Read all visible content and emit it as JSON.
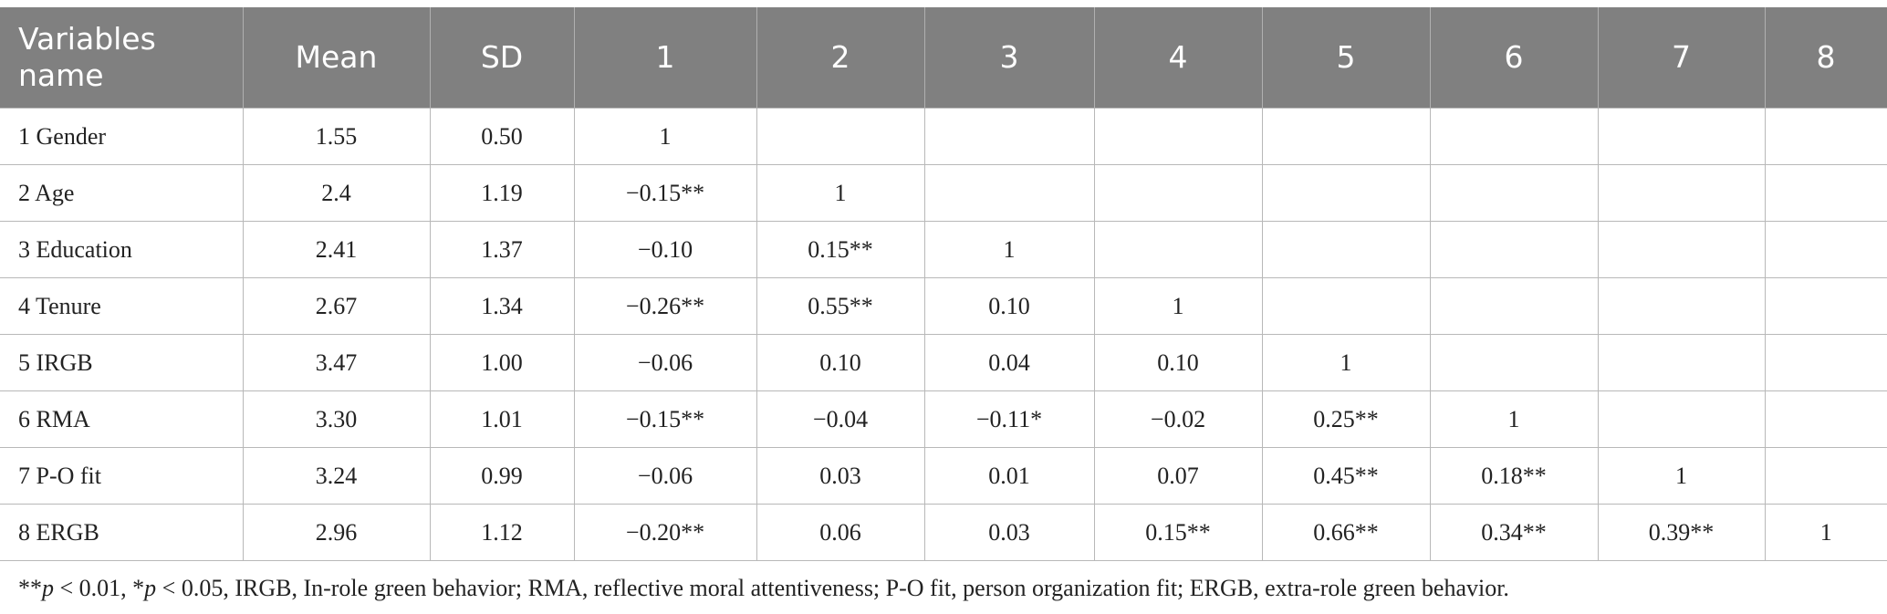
{
  "table": {
    "headers": [
      "Variables name",
      "Mean",
      "SD",
      "1",
      "2",
      "3",
      "4",
      "5",
      "6",
      "7",
      "8"
    ],
    "rows": [
      [
        "1 Gender",
        "1.55",
        "0.50",
        "1",
        "",
        "",
        "",
        "",
        "",
        "",
        ""
      ],
      [
        "2 Age",
        "2.4",
        "1.19",
        "−0.15**",
        "1",
        "",
        "",
        "",
        "",
        "",
        ""
      ],
      [
        "3 Education",
        "2.41",
        "1.37",
        "−0.10",
        "0.15**",
        "1",
        "",
        "",
        "",
        "",
        ""
      ],
      [
        "4 Tenure",
        "2.67",
        "1.34",
        "−0.26**",
        "0.55**",
        "0.10",
        "1",
        "",
        "",
        "",
        ""
      ],
      [
        "5 IRGB",
        "3.47",
        "1.00",
        "−0.06",
        "0.10",
        "0.04",
        "0.10",
        "1",
        "",
        "",
        ""
      ],
      [
        "6 RMA",
        "3.30",
        "1.01",
        "−0.15**",
        "−0.04",
        "−0.11*",
        "−0.02",
        "0.25**",
        "1",
        "",
        ""
      ],
      [
        "7 P-O fit",
        "3.24",
        "0.99",
        "−0.06",
        "0.03",
        "0.01",
        "0.07",
        "0.45**",
        "0.18**",
        "1",
        ""
      ],
      [
        "8 ERGB",
        "2.96",
        "1.12",
        "−0.20**",
        "0.06",
        "0.03",
        "0.15**",
        "0.66**",
        "0.34**",
        "0.39**",
        "1"
      ]
    ]
  },
  "footnote": {
    "p1_stars": "**",
    "p1_var": "p",
    "p1_rest": " < 0.01, *",
    "p2_var": "p",
    "p2_rest": " < 0.05, IRGB, In-role green behavior; RMA, reflective moral attentiveness; P-O fit, person organization fit; ERGB, extra-role green behavior."
  }
}
